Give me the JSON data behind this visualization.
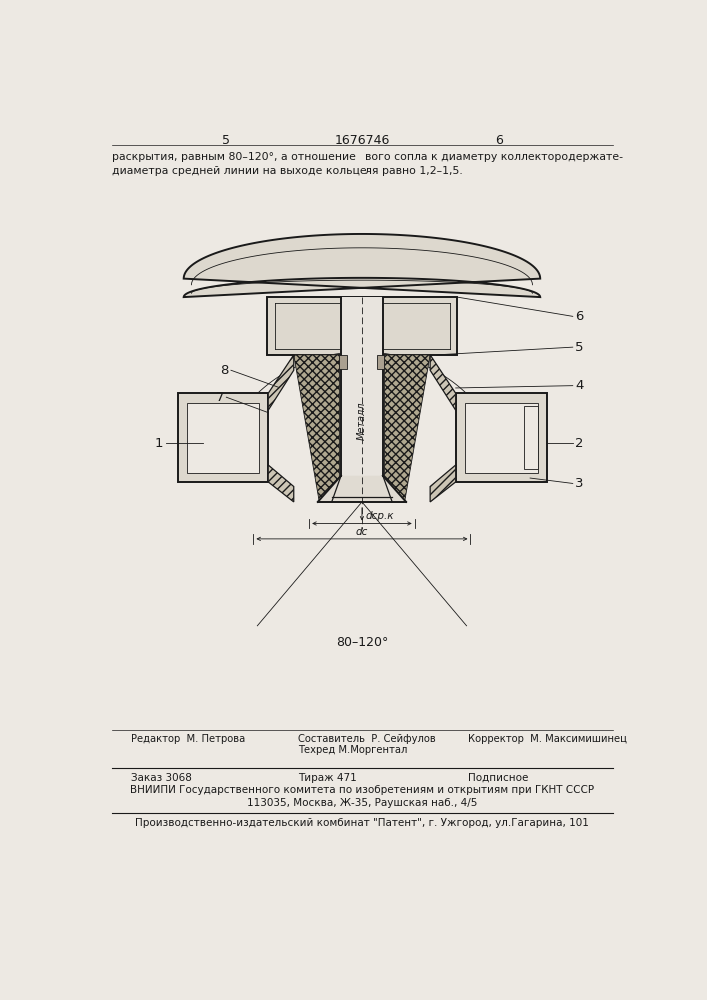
{
  "patent_number": "1676746",
  "page_left": "5",
  "page_right": "6",
  "top_text_left": "раскрытия, равным 80–120°, а отношение\nдиаметра средней линии на выходе кольце-",
  "top_text_right": "вого сопла к диаметру коллектородержате-\nля равно 1,2–1,5.",
  "metal_label": "Металл",
  "dim_dsr": "dср.к",
  "dim_dc": "dc",
  "angle_label": "80–120°",
  "label_1": "1",
  "label_2": "2",
  "label_3": "3",
  "label_4": "4",
  "label_5": "5",
  "label_6": "6",
  "label_7": "7",
  "label_8": "8",
  "bottom_editor": "Редактор  М. Петрова",
  "bottom_comp": "Составитель  Р. Сейфулов",
  "bottom_tech": "Техред М.Моргентал",
  "bottom_corr": "Корректор  М. Максимишинец",
  "bottom_order": "Заказ 3068",
  "bottom_tirazh": "Тираж 471",
  "bottom_podp": "Подписное",
  "bottom_vniip1": "ВНИИПИ Государственного комитета по изобретениям и открытиям при ГКНТ СССР",
  "bottom_vniip2": "113035, Москва, Ж-35, Раушская наб., 4/5",
  "bottom_patent": "Производственно-издательский комбинат \"Патент\", г. Ужгород, ул.Гагарина, 101",
  "bg": "#ede9e3",
  "lc": "#1a1a1a",
  "hatch_color": "#b0a890",
  "fill_light": "#ddd8ce",
  "fill_mid": "#ccc5b5",
  "fill_dark": "#aaa090"
}
